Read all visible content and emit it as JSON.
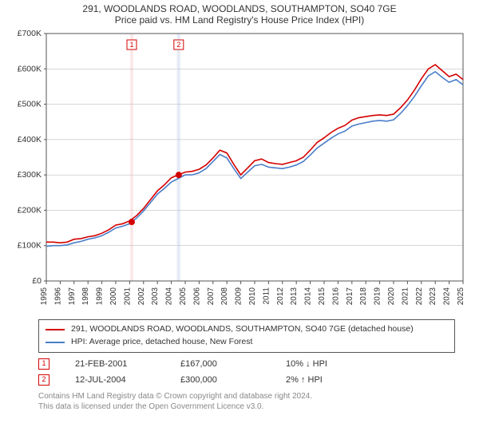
{
  "title": "291, WOODLANDS ROAD, WOODLANDS, SOUTHAMPTON, SO40 7GE",
  "subtitle": "Price paid vs. HM Land Registry's House Price Index (HPI)",
  "chart": {
    "type": "line",
    "background_color": "#ffffff",
    "grid_color": "#bfbfbf",
    "axis_color": "#555555",
    "xlim": [
      1995,
      2025
    ],
    "ylim": [
      0,
      700000
    ],
    "ytick_step": 100000,
    "ytick_labels": [
      "£0",
      "£100K",
      "£200K",
      "£300K",
      "£400K",
      "£500K",
      "£600K",
      "£700K"
    ],
    "xticks": [
      1995,
      1996,
      1997,
      1998,
      1999,
      2000,
      2001,
      2002,
      2003,
      2004,
      2005,
      2006,
      2007,
      2008,
      2009,
      2010,
      2011,
      2012,
      2013,
      2014,
      2015,
      2016,
      2017,
      2018,
      2019,
      2020,
      2021,
      2022,
      2023,
      2024,
      2025
    ],
    "label_fontsize": 10.5,
    "line_width": 1.6,
    "series": [
      {
        "name": "291, WOODLANDS ROAD, WOODLANDS, SOUTHAMPTON, SO40 7GE (detached house)",
        "color": "#d40000",
        "points": [
          [
            1995,
            110000
          ],
          [
            1995.5,
            110000
          ],
          [
            1996,
            108000
          ],
          [
            1996.5,
            110000
          ],
          [
            1997,
            118000
          ],
          [
            1997.5,
            120000
          ],
          [
            1998,
            125000
          ],
          [
            1998.5,
            128000
          ],
          [
            1999,
            135000
          ],
          [
            1999.5,
            145000
          ],
          [
            2000,
            158000
          ],
          [
            2000.5,
            162000
          ],
          [
            2001,
            170000
          ],
          [
            2001.5,
            185000
          ],
          [
            2002,
            205000
          ],
          [
            2002.5,
            230000
          ],
          [
            2003,
            255000
          ],
          [
            2003.5,
            272000
          ],
          [
            2004,
            292000
          ],
          [
            2004.5,
            300000
          ],
          [
            2005,
            308000
          ],
          [
            2005.5,
            310000
          ],
          [
            2006,
            316000
          ],
          [
            2006.5,
            328000
          ],
          [
            2007,
            348000
          ],
          [
            2007.5,
            370000
          ],
          [
            2008,
            362000
          ],
          [
            2008.5,
            330000
          ],
          [
            2009,
            300000
          ],
          [
            2009.5,
            320000
          ],
          [
            2010,
            340000
          ],
          [
            2010.5,
            345000
          ],
          [
            2011,
            335000
          ],
          [
            2011.5,
            332000
          ],
          [
            2012,
            330000
          ],
          [
            2012.5,
            335000
          ],
          [
            2013,
            340000
          ],
          [
            2013.5,
            350000
          ],
          [
            2014,
            370000
          ],
          [
            2014.5,
            392000
          ],
          [
            2015,
            405000
          ],
          [
            2015.5,
            420000
          ],
          [
            2016,
            432000
          ],
          [
            2016.5,
            440000
          ],
          [
            2017,
            455000
          ],
          [
            2017.5,
            462000
          ],
          [
            2018,
            465000
          ],
          [
            2018.5,
            468000
          ],
          [
            2019,
            470000
          ],
          [
            2019.5,
            468000
          ],
          [
            2020,
            472000
          ],
          [
            2020.5,
            490000
          ],
          [
            2021,
            512000
          ],
          [
            2021.5,
            540000
          ],
          [
            2022,
            572000
          ],
          [
            2022.5,
            600000
          ],
          [
            2023,
            612000
          ],
          [
            2023.5,
            595000
          ],
          [
            2024,
            578000
          ],
          [
            2024.5,
            585000
          ],
          [
            2025,
            570000
          ]
        ]
      },
      {
        "name": "HPI: Average price, detached house, New Forest",
        "color": "#4a7dc9",
        "points": [
          [
            1995,
            98000
          ],
          [
            1995.5,
            100000
          ],
          [
            1996,
            100000
          ],
          [
            1996.5,
            102000
          ],
          [
            1997,
            108000
          ],
          [
            1997.5,
            112000
          ],
          [
            1998,
            118000
          ],
          [
            1998.5,
            122000
          ],
          [
            1999,
            128000
          ],
          [
            1999.5,
            138000
          ],
          [
            2000,
            150000
          ],
          [
            2000.5,
            155000
          ],
          [
            2001,
            162000
          ],
          [
            2001.5,
            178000
          ],
          [
            2002,
            198000
          ],
          [
            2002.5,
            222000
          ],
          [
            2003,
            246000
          ],
          [
            2003.5,
            262000
          ],
          [
            2004,
            280000
          ],
          [
            2004.5,
            290000
          ],
          [
            2005,
            300000
          ],
          [
            2005.5,
            300000
          ],
          [
            2006,
            306000
          ],
          [
            2006.5,
            318000
          ],
          [
            2007,
            338000
          ],
          [
            2007.5,
            358000
          ],
          [
            2008,
            348000
          ],
          [
            2008.5,
            318000
          ],
          [
            2009,
            290000
          ],
          [
            2009.5,
            308000
          ],
          [
            2010,
            326000
          ],
          [
            2010.5,
            330000
          ],
          [
            2011,
            322000
          ],
          [
            2011.5,
            320000
          ],
          [
            2012,
            318000
          ],
          [
            2012.5,
            322000
          ],
          [
            2013,
            328000
          ],
          [
            2013.5,
            338000
          ],
          [
            2014,
            356000
          ],
          [
            2014.5,
            376000
          ],
          [
            2015,
            390000
          ],
          [
            2015.5,
            404000
          ],
          [
            2016,
            416000
          ],
          [
            2016.5,
            424000
          ],
          [
            2017,
            438000
          ],
          [
            2017.5,
            444000
          ],
          [
            2018,
            448000
          ],
          [
            2018.5,
            452000
          ],
          [
            2019,
            454000
          ],
          [
            2019.5,
            452000
          ],
          [
            2020,
            456000
          ],
          [
            2020.5,
            474000
          ],
          [
            2021,
            496000
          ],
          [
            2021.5,
            522000
          ],
          [
            2022,
            552000
          ],
          [
            2022.5,
            580000
          ],
          [
            2023,
            592000
          ],
          [
            2023.5,
            576000
          ],
          [
            2024,
            562000
          ],
          [
            2024.5,
            570000
          ],
          [
            2025,
            555000
          ]
        ]
      }
    ],
    "event_bands": [
      {
        "start": 2001.05,
        "end": 2001.25,
        "fill": "#fbe6e6"
      },
      {
        "start": 2004.4,
        "end": 2004.65,
        "fill": "#e6ecf7"
      }
    ],
    "event_markers": [
      {
        "label": "1",
        "year": 2001.15,
        "value": 167000,
        "color": "#d40000"
      },
      {
        "label": "2",
        "year": 2004.53,
        "value": 300000,
        "color": "#d40000"
      }
    ]
  },
  "events": [
    {
      "marker": "1",
      "date": "21-FEB-2001",
      "price": "£167,000",
      "delta": "10% ↓ HPI"
    },
    {
      "marker": "2",
      "date": "12-JUL-2004",
      "price": "£300,000",
      "delta": "2% ↑ HPI"
    }
  ],
  "credits": {
    "line1": "Contains HM Land Registry data © Crown copyright and database right 2024.",
    "line2": "This data is licensed under the Open Government Licence v3.0."
  }
}
